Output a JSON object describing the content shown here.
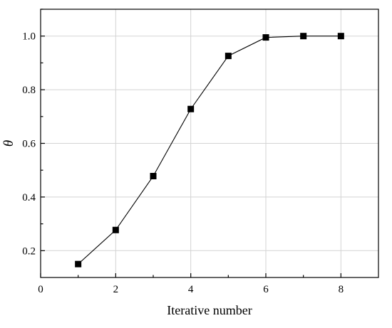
{
  "chart_data": {
    "type": "line",
    "title": "",
    "xlabel": "Iterative number",
    "ylabel": "θ",
    "xlim": [
      0,
      9
    ],
    "ylim": [
      0.1,
      1.1
    ],
    "xticks": [
      0,
      2,
      4,
      6,
      8
    ],
    "xtick_labels": [
      "0",
      "2",
      "4",
      "6",
      "8"
    ],
    "yticks": [
      0.2,
      0.4,
      0.6,
      0.8,
      1.0
    ],
    "ytick_labels": [
      "0.2",
      "0.4",
      "0.6",
      "0.8",
      "1.0"
    ],
    "grid": true,
    "legend": "none",
    "marker": "square",
    "colors": {
      "line": "#000000",
      "marker": "#000000",
      "grid": "#d3d3d3",
      "axes": "#000000"
    },
    "series": [
      {
        "x": [
          1,
          2,
          3,
          4,
          5,
          6,
          7,
          8
        ],
        "values": [
          0.15,
          0.277,
          0.478,
          0.728,
          0.926,
          0.995,
          1.0,
          1.0
        ]
      }
    ]
  }
}
